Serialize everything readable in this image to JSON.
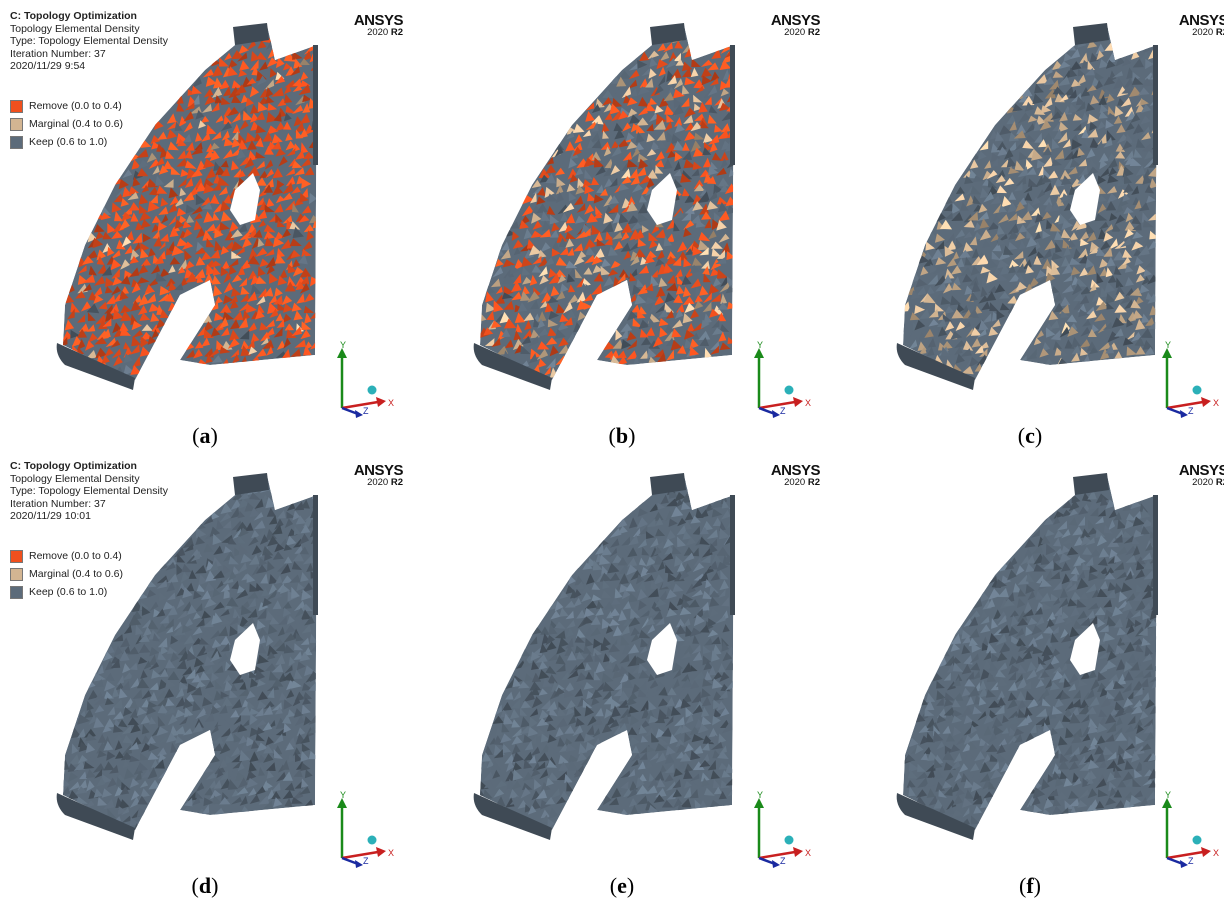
{
  "panels": [
    {
      "id": "a",
      "caption_letter": "a",
      "show_info": true,
      "info": {
        "title": "C: Topology Optimization",
        "line1": "Topology Elemental Density",
        "line2": "Type: Topology Elemental Density",
        "line3": "Iteration Number: 37",
        "line4": "2020/11/29 9:54"
      },
      "mix": [
        0.9,
        0.05,
        0.05
      ],
      "partial_right": false
    },
    {
      "id": "b",
      "caption_letter": "b",
      "show_info": false,
      "mix": [
        0.5,
        0.2,
        0.3
      ],
      "partial_right": false
    },
    {
      "id": "c",
      "caption_letter": "c",
      "show_info": false,
      "mix": [
        0.0,
        0.35,
        0.65
      ],
      "partial_right": true
    },
    {
      "id": "d",
      "caption_letter": "d",
      "show_info": true,
      "info": {
        "title": "C: Topology Optimization",
        "line1": "Topology Elemental Density",
        "line2": "Type: Topology Elemental Density",
        "line3": "Iteration Number: 37",
        "line4": "2020/11/29 10:01"
      },
      "mix": [
        0.0,
        0.0,
        1.0
      ],
      "partial_right": false
    },
    {
      "id": "e",
      "caption_letter": "e",
      "show_info": false,
      "mix": [
        0.0,
        0.0,
        1.0
      ],
      "partial_right": false
    },
    {
      "id": "f",
      "caption_letter": "f",
      "show_info": false,
      "mix": [
        0.0,
        0.0,
        1.0
      ],
      "partial_right": true
    }
  ],
  "legend": [
    {
      "label": "Remove (0.0 to 0.4)",
      "color": "#f0501e"
    },
    {
      "label": "Marginal (0.4 to 0.6)",
      "color": "#d3b592"
    },
    {
      "label": "Keep (0.6 to 1.0)",
      "color": "#5c6b7a"
    }
  ],
  "brand": {
    "name": "ANSYS",
    "version_prefix": "2020 ",
    "version_bold": "R2"
  },
  "axes": {
    "y": "Y",
    "x": "X",
    "z": "Z"
  },
  "colors": {
    "remove": "#f0501e",
    "marginal": "#d3b592",
    "keep": "#5c6b7a",
    "axis_y": "#1a8a1a",
    "axis_x": "#c82020",
    "axis_z": "#1a2aa0",
    "sphere": "#2bb0b8"
  }
}
